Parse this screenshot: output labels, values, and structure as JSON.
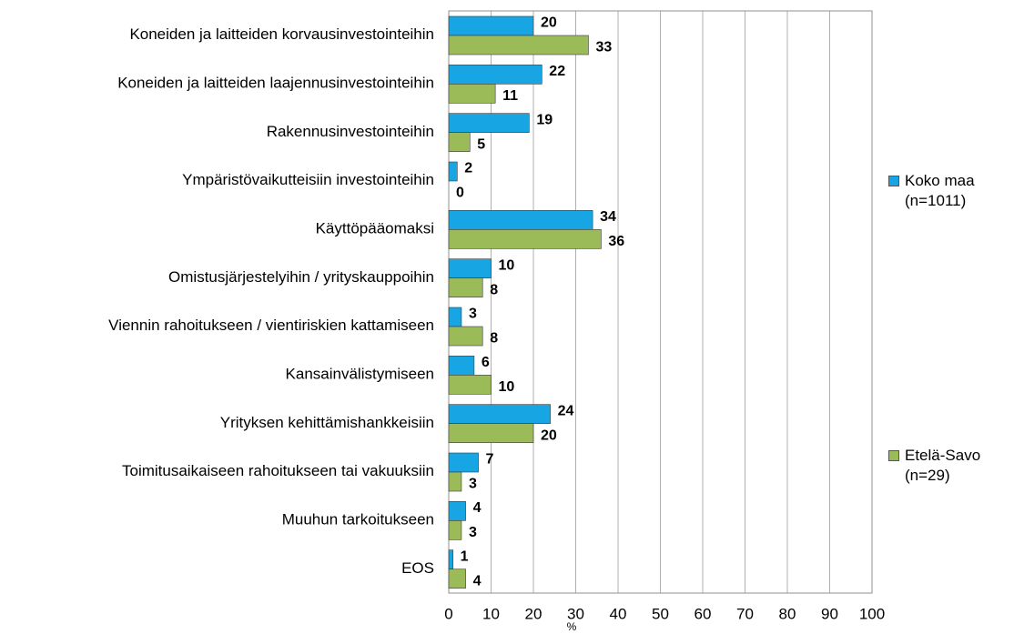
{
  "chart_data": {
    "type": "bar",
    "orientation": "horizontal",
    "x_label": "%",
    "categories": [
      "Koneiden ja laitteiden korvausinvestointeihin",
      "Koneiden ja laitteiden laajennusinvestointeihin",
      "Rakennusinvestointeihin",
      "Ympäristövaikutteisiin investointeihin",
      "Käyttöpääomaksi",
      "Omistusjärjestelyihin / yrityskauppoihin",
      "Viennin rahoitukseen / vientiriskien kattamiseen",
      "Kansainvälistymiseen",
      "Yrityksen kehittämishankkeisiin",
      "Toimitusaikaiseen rahoitukseen tai vakuuksiin",
      "Muuhun tarkoitukseen",
      "EOS"
    ],
    "series": [
      {
        "name": "Koko maa (n=1011)",
        "color": "#17a6e3",
        "values": [
          20,
          22,
          19,
          2,
          34,
          10,
          3,
          6,
          24,
          7,
          4,
          1
        ]
      },
      {
        "name": "Etelä-Savo (n=29)",
        "color": "#9bbb59",
        "values": [
          33,
          11,
          5,
          0,
          36,
          8,
          8,
          10,
          20,
          3,
          3,
          4
        ]
      }
    ],
    "xlim": [
      0,
      100
    ],
    "xticks": [
      0,
      10,
      20,
      30,
      40,
      50,
      60,
      70,
      80,
      90,
      100
    ],
    "grid": true
  }
}
